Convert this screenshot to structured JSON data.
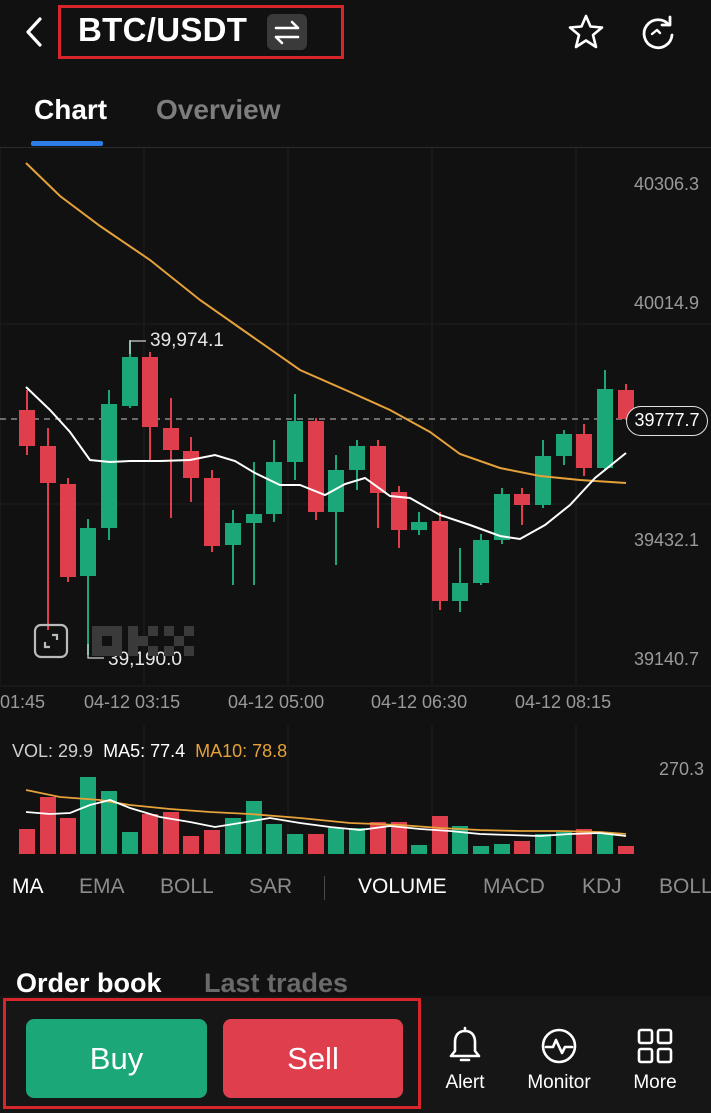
{
  "header": {
    "pair": "BTC/USDT",
    "icons": [
      "back-chevron-icon",
      "swap-icon",
      "star-icon",
      "refresh-icon"
    ]
  },
  "tabs": [
    {
      "label": "Chart",
      "active": true
    },
    {
      "label": "Overview",
      "active": false
    }
  ],
  "chart": {
    "price_axis": [
      "40306.3",
      "40014.9",
      "39432.1",
      "39140.7"
    ],
    "current_price": "39777.7",
    "high_label": "39,974.1",
    "low_label": "39,190.0",
    "time_axis": [
      "01:45",
      "04-12 03:15",
      "04-12 05:00",
      "04-12 06:30",
      "04-12 08:15"
    ],
    "colors": {
      "up": "#1ba777",
      "down": "#df3f4d",
      "ma_white": "#ffffff",
      "ma_orange": "#e5a23a"
    }
  },
  "volume": {
    "vol_label": "VOL: 29.9",
    "ma5_label": "MA5: 77.4",
    "ma10_label": "MA10: 78.8",
    "top_value": "270.3"
  },
  "indicators": {
    "main": [
      "MA",
      "EMA",
      "BOLL",
      "SAR"
    ],
    "sub": [
      "VOLUME",
      "MACD",
      "KDJ",
      "BOLL"
    ],
    "active_sub": "VOLUME"
  },
  "book_tabs": {
    "order_book": "Order book",
    "last_trades": "Last trades"
  },
  "actions": {
    "buy": "Buy",
    "sell": "Sell"
  },
  "nav": [
    {
      "label": "Alert",
      "icon": "bell-icon"
    },
    {
      "label": "Monitor",
      "icon": "monitor-icon"
    },
    {
      "label": "More",
      "icon": "grid-icon"
    }
  ]
}
